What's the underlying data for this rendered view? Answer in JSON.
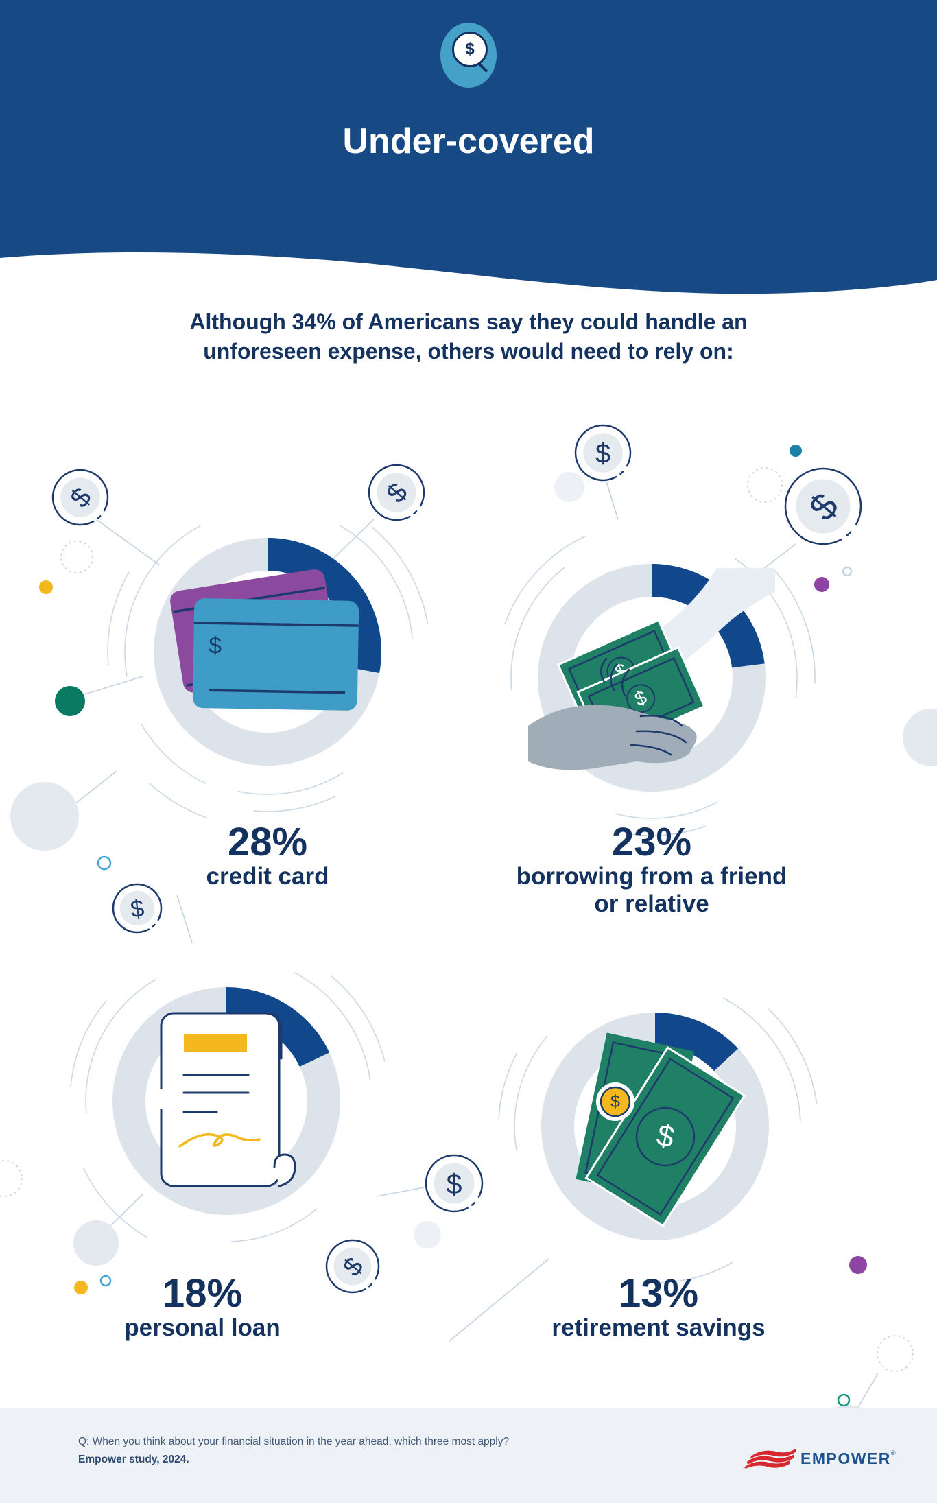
{
  "header": {
    "title": "Under-covered",
    "icon": "dollar-magnifier"
  },
  "intro": {
    "line1": "Although 34% of Americans say they could handle an",
    "line2": "unforeseen expense, others would need to rely on:"
  },
  "chart_data": {
    "type": "pie",
    "subtype": "four separate donut gauges, arc starts at 12 o'clock and sweeps clockwise proportional to value",
    "title": "Although 34% of Americans say they could handle an unforeseen expense, others would need to rely on:",
    "context_value_pct": 34,
    "categories": [
      "credit card",
      "borrowing from a friend or relative",
      "personal loan",
      "retirement savings"
    ],
    "values": [
      28,
      23,
      18,
      13
    ],
    "unit": "%",
    "arc_color": "#11488c",
    "track_color": "#dce3ea",
    "legend_position": "below each donut"
  },
  "stats": [
    {
      "percent": "28%",
      "label": "credit card",
      "label2": "",
      "icon": "credit-cards"
    },
    {
      "percent": "23%",
      "label": "borrowing from a friend",
      "label2": "or relative",
      "icon": "hand-giving-money"
    },
    {
      "percent": "18%",
      "label": "personal loan",
      "label2": "",
      "icon": "loan-document"
    },
    {
      "percent": "13%",
      "label": "retirement savings",
      "label2": "",
      "icon": "cash-and-coin"
    }
  ],
  "footer": {
    "question": "Q: When you think about your financial situation in the year ahead, which three most apply?",
    "source": "Empower study, 2024.",
    "brand": "EMPOWER",
    "reg": "®"
  },
  "colors": {
    "header_bg": "#174a85",
    "icon_bubble": "#46a1c8",
    "arc": "#11488c",
    "track": "#dce3ea",
    "text_navy": "#14325f",
    "card_blue": "#3f9cc6",
    "card_purple": "#8c4a9e",
    "money_green": "#1f8066",
    "accent_yellow": "#f4b71d",
    "accent_teal": "#0a7a63",
    "accent_blue_dot": "#1c80a8",
    "accent_purple": "#8e44a3",
    "footer_bg": "#eef1f5",
    "footer_text": "#3f5878",
    "logo_red": "#d7282f",
    "logo_navy": "#1d5291"
  }
}
